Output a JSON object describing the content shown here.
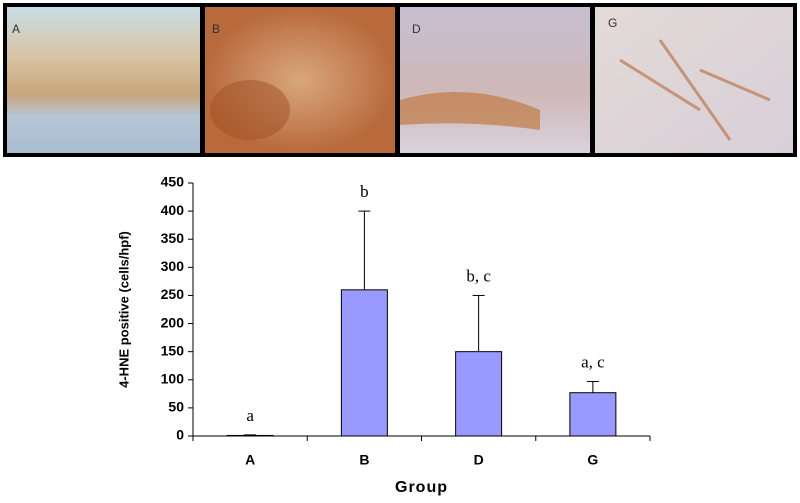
{
  "image_panels": {
    "labels": [
      "A",
      "B",
      "D",
      "G"
    ]
  },
  "chart_data": {
    "type": "bar",
    "categories": [
      "A",
      "B",
      "D",
      "G"
    ],
    "values": [
      1,
      260,
      150,
      77
    ],
    "errors": [
      1,
      140,
      100,
      20
    ],
    "annotations": [
      "a",
      "b",
      "b, c",
      "a, c"
    ],
    "color": "#9999ff",
    "x_label": "Group",
    "y_label": "4-HNE positive (cells/hpf)",
    "ylim": [
      0,
      450
    ],
    "yticks": [
      0,
      50,
      100,
      150,
      200,
      250,
      300,
      350,
      400,
      450
    ],
    "grid": false
  }
}
